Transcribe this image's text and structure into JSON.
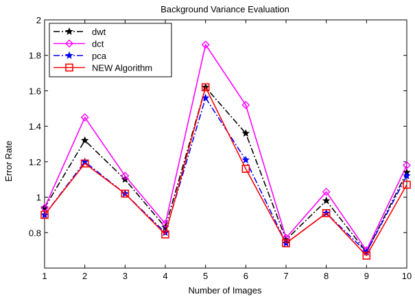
{
  "chart_data": {
    "type": "line",
    "title": "Background Variance Evaluation",
    "xlabel": "Number of Images",
    "ylabel": "Error Rate",
    "x": [
      1,
      2,
      3,
      4,
      5,
      6,
      7,
      8,
      9,
      10
    ],
    "xlim": [
      1,
      10
    ],
    "ylim": [
      0.6,
      2.0
    ],
    "xticks": [
      "1",
      "2",
      "3",
      "4",
      "5",
      "6",
      "7",
      "8",
      "9",
      "10"
    ],
    "yticks": [
      {
        "value": 0.8,
        "label": "0.8"
      },
      {
        "value": 1.0,
        "label": "1"
      },
      {
        "value": 1.2,
        "label": "1.2"
      },
      {
        "value": 1.4,
        "label": "1.4"
      },
      {
        "value": 1.6,
        "label": "1.6"
      },
      {
        "value": 1.8,
        "label": "1.8"
      },
      {
        "value": 2.0,
        "label": "2"
      }
    ],
    "grid": false,
    "legend_position": "top-left",
    "series": [
      {
        "name": "dwt",
        "color": "#000000",
        "dash": "dashdot",
        "marker": "star",
        "values": [
          0.94,
          1.32,
          1.1,
          0.83,
          1.62,
          1.36,
          0.76,
          0.98,
          0.69,
          1.14
        ]
      },
      {
        "name": "dct",
        "color": "#ff00ff",
        "dash": "solid",
        "marker": "diamond",
        "values": [
          0.94,
          1.45,
          1.12,
          0.85,
          1.86,
          1.52,
          0.77,
          1.03,
          0.7,
          1.18
        ]
      },
      {
        "name": "pca",
        "color": "#0000ff",
        "dash": "dashdot",
        "marker": "star",
        "values": [
          0.9,
          1.2,
          1.02,
          0.8,
          1.56,
          1.21,
          0.74,
          0.91,
          0.69,
          1.12
        ]
      },
      {
        "name": "NEW Algorithm",
        "color": "#ff0000",
        "dash": "solid",
        "marker": "square",
        "values": [
          0.9,
          1.19,
          1.02,
          0.79,
          1.62,
          1.16,
          0.74,
          0.91,
          0.67,
          1.07
        ]
      }
    ]
  }
}
